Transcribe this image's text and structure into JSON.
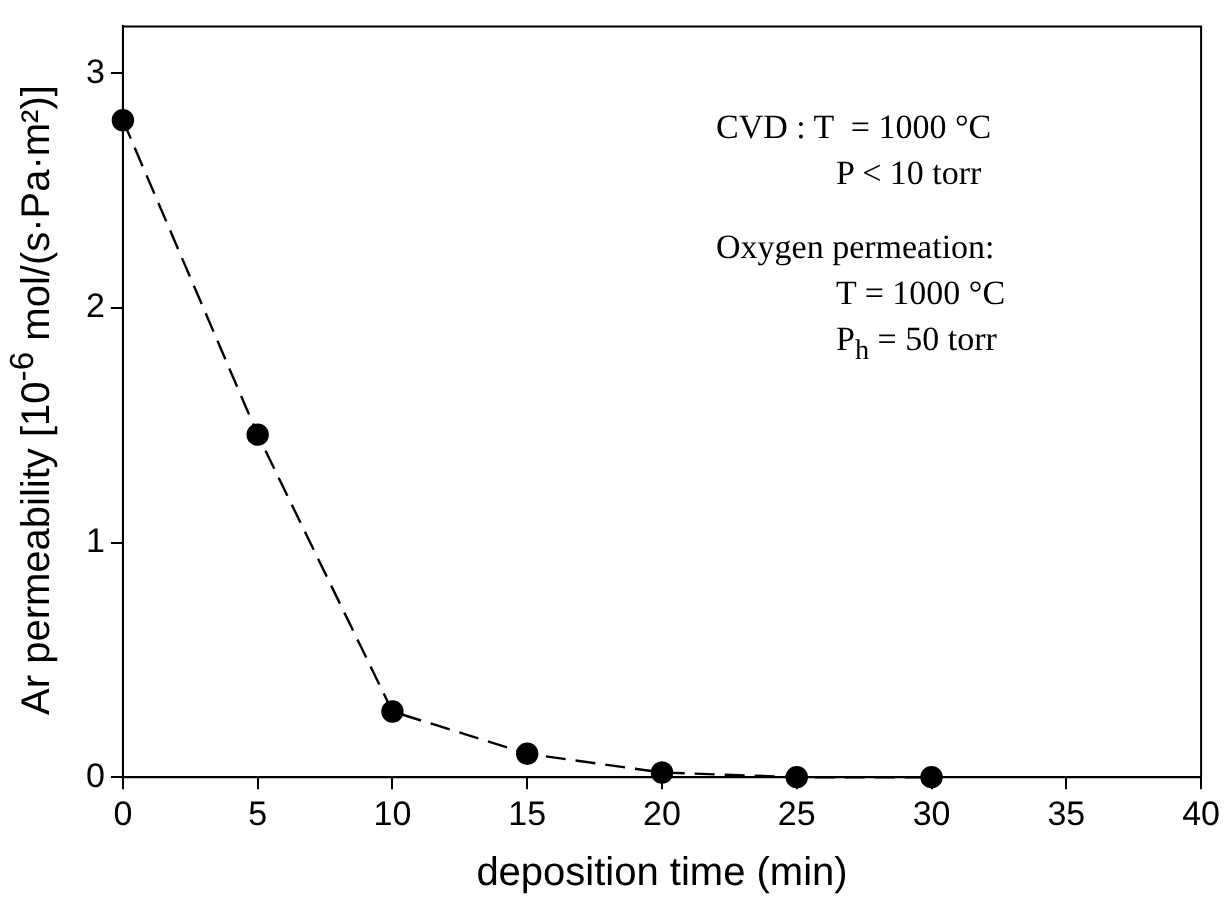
{
  "chart_data": {
    "type": "line",
    "xlabel": "deposition time (min)",
    "ylabel": "Ar permeability [10$^{-6}$ mol/(s·Pa·m²)]",
    "x": [
      0,
      5,
      10,
      15,
      20,
      25,
      30
    ],
    "series": [
      {
        "color": "#000000",
        "values": [
          2.8,
          1.46,
          0.28,
          0.1,
          0.02,
          0,
          0
        ]
      }
    ],
    "xlim": [
      0,
      40
    ],
    "xticks": [
      0,
      5,
      10,
      15,
      20,
      25,
      30,
      35,
      40
    ],
    "ylim": [
      0,
      3.2
    ],
    "yticks": [
      0,
      1,
      2,
      3
    ],
    "grid": false,
    "legend": false,
    "marker": "circle",
    "line_style": "dashed",
    "annotations": [
      "CVD : T  = 1000 °C",
      "P < 10 torr",
      "Oxygen permeation:",
      "T = 1000 °C",
      "P$_{h}$ = 50 torr"
    ]
  }
}
